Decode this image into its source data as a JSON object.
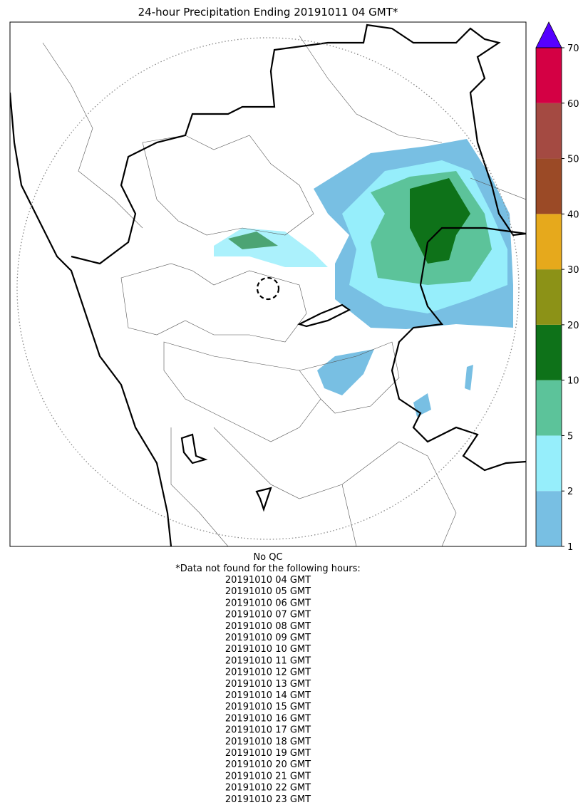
{
  "title": "24-hour Precipitation Ending 20191011 04 GMT*",
  "colorbar": {
    "ticks": [
      1,
      2,
      5,
      10,
      20,
      30,
      40,
      50,
      60,
      70
    ],
    "colors": [
      "#78bfe3",
      "#96eefb",
      "#5cc39a",
      "#0e7219",
      "#8c9217",
      "#e6a91c",
      "#9b4a26",
      "#a44a42",
      "#d40044"
    ],
    "extend_color": "#5500ff"
  },
  "notes": {
    "qc": "No QC",
    "heading": "*Data not found for the following hours:",
    "hours": [
      "20191010 04 GMT",
      "20191010 05 GMT",
      "20191010 06 GMT",
      "20191010 07 GMT",
      "20191010 08 GMT",
      "20191010 09 GMT",
      "20191010 10 GMT",
      "20191010 11 GMT",
      "20191010 12 GMT",
      "20191010 13 GMT",
      "20191010 14 GMT",
      "20191010 15 GMT",
      "20191010 16 GMT",
      "20191010 17 GMT",
      "20191010 18 GMT",
      "20191010 19 GMT",
      "20191010 20 GMT",
      "20191010 21 GMT",
      "20191010 22 GMT",
      "20191010 23 GMT"
    ]
  }
}
